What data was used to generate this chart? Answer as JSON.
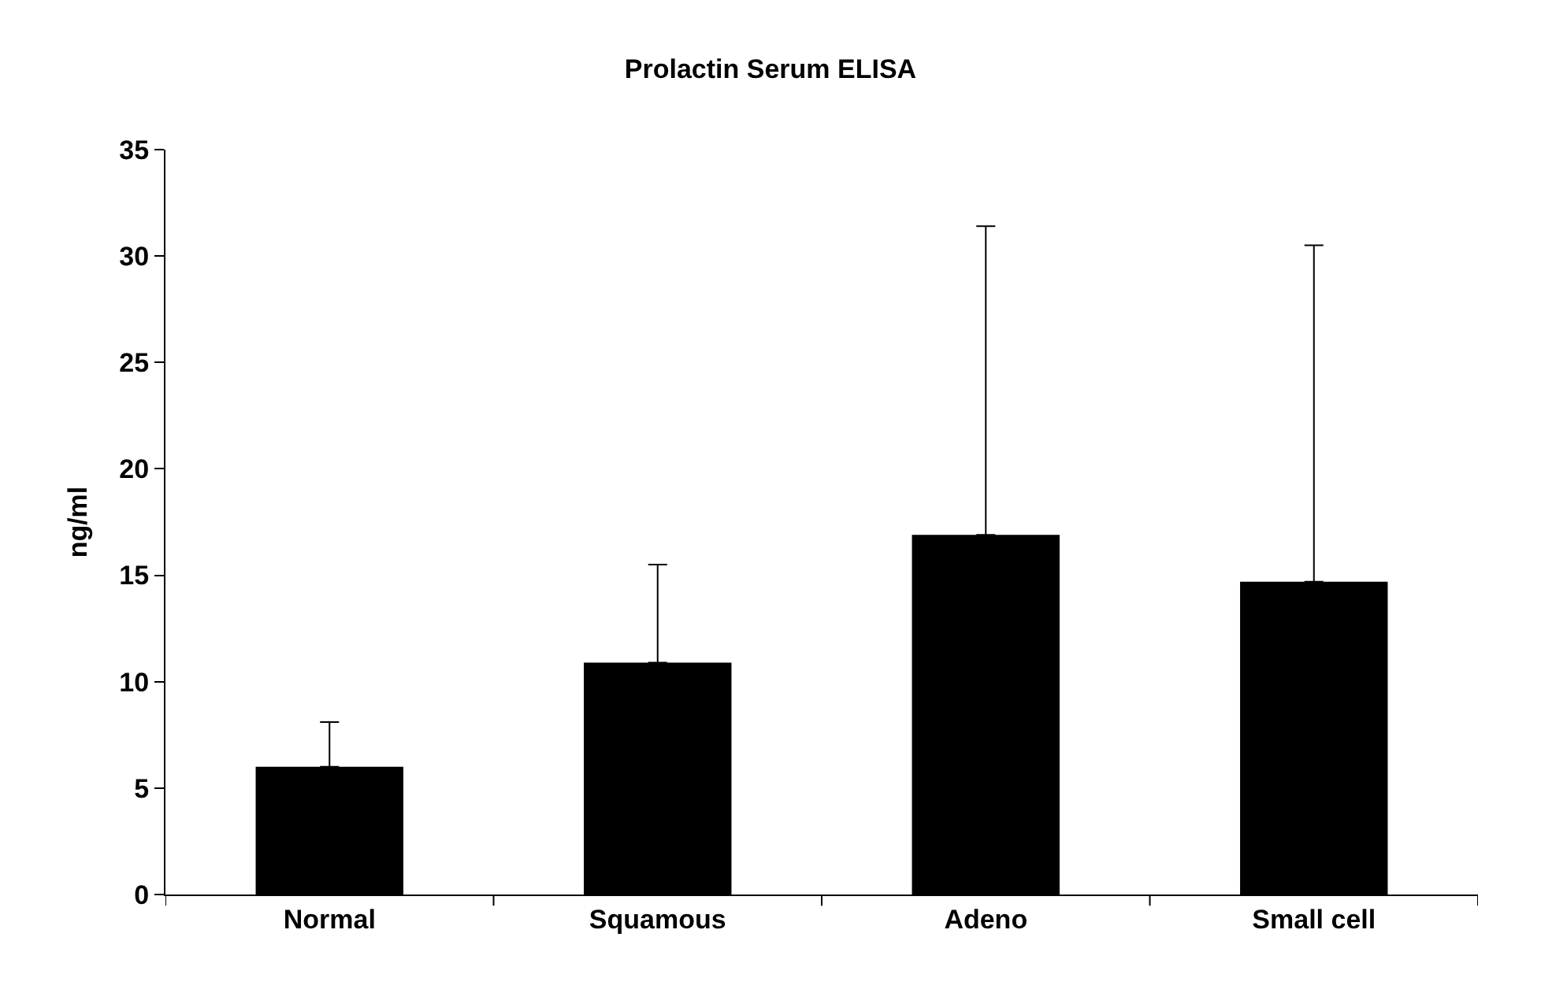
{
  "chart_data": {
    "type": "bar",
    "title": "Prolactin Serum ELISA",
    "ylabel": "ng/ml",
    "categories": [
      "Normal",
      "Squamous",
      "Adeno",
      "Small cell"
    ],
    "values": [
      6.0,
      10.9,
      16.9,
      14.7
    ],
    "errors": [
      [
        6.0,
        8.1
      ],
      [
        10.9,
        15.5
      ],
      [
        16.9,
        31.4
      ],
      [
        14.7,
        30.5
      ]
    ],
    "color": "#000000",
    "ylim": [
      0,
      35
    ],
    "yticks": [
      0,
      5,
      10,
      15,
      20,
      25,
      30,
      35
    ]
  }
}
